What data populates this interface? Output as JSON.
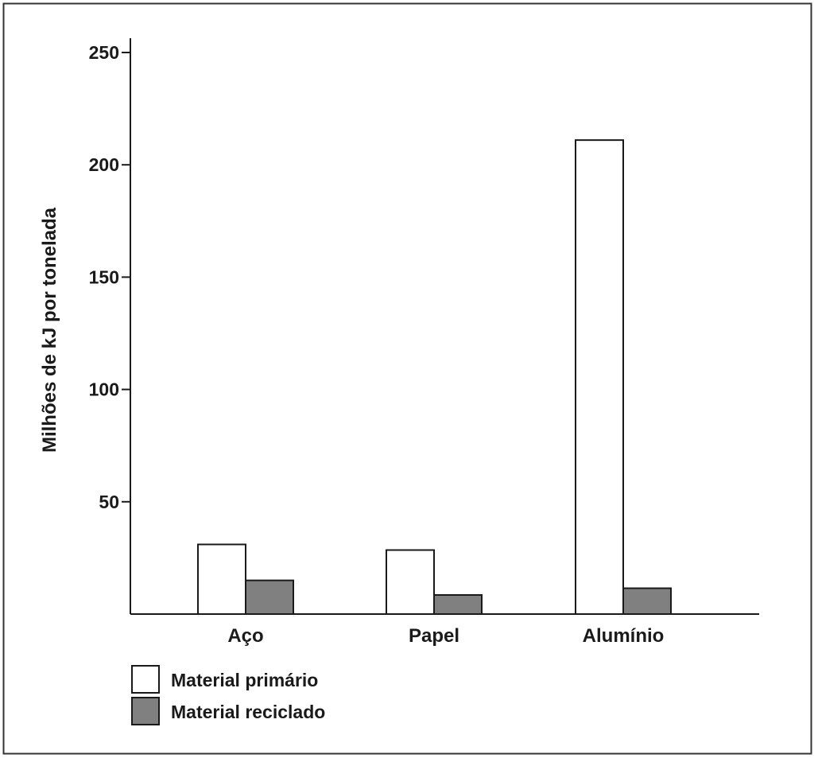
{
  "chart_data": {
    "type": "bar",
    "title": "",
    "xlabel": "",
    "ylabel": "Milhões de kJ por tonelada",
    "categories": [
      "Aço",
      "Papel",
      "Alumínio"
    ],
    "series": [
      {
        "name": "Material primário",
        "values": [
          31,
          28.5,
          211
        ],
        "color": "#ffffff"
      },
      {
        "name": "Material reciclado",
        "values": [
          15,
          8.5,
          11.5
        ],
        "color": "#808080"
      }
    ],
    "yticks": [
      50,
      100,
      150,
      200,
      250
    ],
    "ylim": [
      0,
      250
    ],
    "grid": false,
    "legend_position": "bottom-left"
  }
}
